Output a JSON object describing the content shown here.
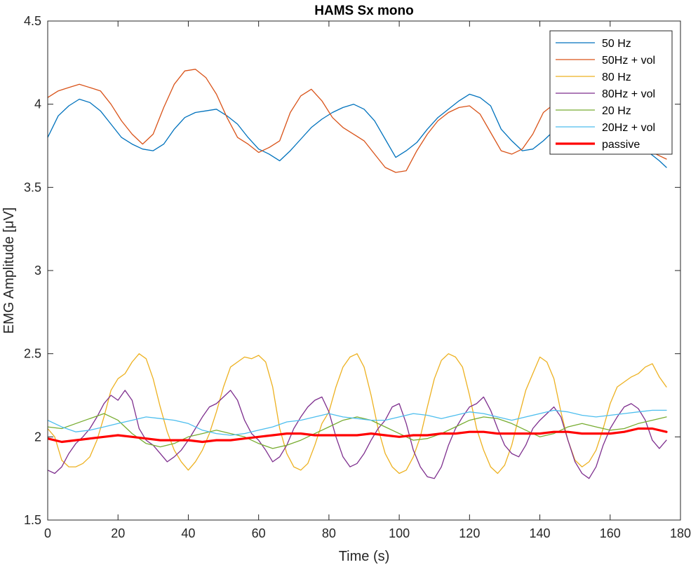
{
  "chart_data": {
    "type": "line",
    "title": "HAMS Sx mono",
    "xlabel": "Time (s)",
    "ylabel": "EMG Amplitude [μV]",
    "xlim": [
      0,
      180
    ],
    "ylim": [
      1.5,
      4.5
    ],
    "xticks": [
      "0",
      "20",
      "40",
      "60",
      "80",
      "100",
      "120",
      "140",
      "160",
      "180"
    ],
    "yticks": [
      "1.5",
      "2",
      "2.5",
      "3",
      "3.5",
      "4",
      "4.5"
    ],
    "grid": false,
    "legend_position": "top-right",
    "series": [
      {
        "name": "50 Hz",
        "color": "#0072BD",
        "width": 1.3,
        "x": [
          0,
          3,
          6,
          9,
          12,
          15,
          18,
          21,
          24,
          27,
          30,
          33,
          36,
          39,
          42,
          45,
          48,
          51,
          54,
          57,
          60,
          63,
          66,
          69,
          72,
          75,
          78,
          81,
          84,
          87,
          90,
          93,
          96,
          99,
          102,
          105,
          108,
          111,
          114,
          117,
          120,
          123,
          126,
          129,
          132,
          135,
          138,
          141,
          144,
          147,
          150,
          153,
          156,
          159,
          162,
          165,
          168,
          171,
          174,
          176
        ],
        "y": [
          3.8,
          3.93,
          3.99,
          4.03,
          4.01,
          3.96,
          3.88,
          3.8,
          3.76,
          3.73,
          3.72,
          3.76,
          3.85,
          3.92,
          3.95,
          3.96,
          3.97,
          3.93,
          3.88,
          3.8,
          3.73,
          3.7,
          3.66,
          3.72,
          3.79,
          3.86,
          3.91,
          3.95,
          3.98,
          4.0,
          3.97,
          3.9,
          3.79,
          3.68,
          3.72,
          3.77,
          3.85,
          3.92,
          3.97,
          4.02,
          4.06,
          4.04,
          3.99,
          3.85,
          3.78,
          3.72,
          3.73,
          3.78,
          3.84,
          3.85,
          3.82,
          3.79,
          3.82,
          3.85,
          3.83,
          3.79,
          3.75,
          3.71,
          3.66,
          3.62
        ]
      },
      {
        "name": "50Hz + vol",
        "color": "#D95319",
        "width": 1.3,
        "x": [
          0,
          3,
          6,
          9,
          12,
          15,
          18,
          21,
          24,
          27,
          30,
          33,
          36,
          39,
          42,
          45,
          48,
          51,
          54,
          57,
          60,
          63,
          66,
          69,
          72,
          75,
          78,
          81,
          84,
          87,
          90,
          93,
          96,
          99,
          102,
          105,
          108,
          111,
          114,
          117,
          120,
          123,
          126,
          129,
          132,
          135,
          138,
          141,
          144,
          147,
          150,
          153,
          156,
          159,
          162,
          165,
          168,
          171,
          174,
          176
        ],
        "y": [
          4.04,
          4.08,
          4.1,
          4.12,
          4.1,
          4.08,
          4.0,
          3.9,
          3.82,
          3.76,
          3.82,
          3.98,
          4.12,
          4.2,
          4.21,
          4.16,
          4.06,
          3.92,
          3.8,
          3.76,
          3.71,
          3.74,
          3.78,
          3.95,
          4.05,
          4.09,
          4.02,
          3.92,
          3.86,
          3.82,
          3.78,
          3.7,
          3.62,
          3.59,
          3.6,
          3.72,
          3.82,
          3.9,
          3.95,
          3.98,
          3.99,
          3.94,
          3.83,
          3.72,
          3.7,
          3.73,
          3.82,
          3.95,
          4.0,
          3.97,
          3.92,
          3.87,
          3.84,
          3.82,
          3.8,
          3.78,
          3.76,
          3.72,
          3.69,
          3.67
        ]
      },
      {
        "name": "80 Hz",
        "color": "#EDB120",
        "width": 1.3,
        "x": [
          0,
          2,
          4,
          6,
          8,
          10,
          12,
          14,
          16,
          18,
          20,
          22,
          24,
          26,
          28,
          30,
          32,
          34,
          36,
          38,
          40,
          42,
          44,
          46,
          48,
          50,
          52,
          54,
          56,
          58,
          60,
          62,
          64,
          66,
          68,
          70,
          72,
          74,
          76,
          78,
          80,
          82,
          84,
          86,
          88,
          90,
          92,
          94,
          96,
          98,
          100,
          102,
          104,
          106,
          108,
          110,
          112,
          114,
          116,
          118,
          120,
          122,
          124,
          126,
          128,
          130,
          132,
          134,
          136,
          138,
          140,
          142,
          144,
          146,
          148,
          150,
          152,
          154,
          156,
          158,
          160,
          162,
          164,
          166,
          168,
          170,
          172,
          174,
          176
        ],
        "y": [
          2.05,
          2.0,
          1.86,
          1.82,
          1.82,
          1.84,
          1.88,
          1.98,
          2.12,
          2.28,
          2.35,
          2.38,
          2.45,
          2.5,
          2.47,
          2.35,
          2.18,
          2.03,
          1.92,
          1.85,
          1.8,
          1.85,
          1.92,
          2.02,
          2.15,
          2.3,
          2.42,
          2.45,
          2.48,
          2.47,
          2.49,
          2.45,
          2.3,
          2.05,
          1.9,
          1.82,
          1.8,
          1.84,
          1.95,
          2.08,
          2.15,
          2.3,
          2.42,
          2.48,
          2.5,
          2.42,
          2.25,
          2.05,
          1.9,
          1.82,
          1.78,
          1.8,
          1.88,
          2.0,
          2.18,
          2.35,
          2.46,
          2.5,
          2.48,
          2.42,
          2.25,
          2.05,
          1.92,
          1.82,
          1.78,
          1.83,
          1.95,
          2.12,
          2.28,
          2.38,
          2.48,
          2.45,
          2.35,
          2.15,
          1.98,
          1.86,
          1.82,
          1.85,
          1.92,
          2.05,
          2.2,
          2.3,
          2.33,
          2.36,
          2.38,
          2.42,
          2.44,
          2.36,
          2.3
        ]
      },
      {
        "name": "80Hz + vol",
        "color": "#7E2F8E",
        "width": 1.3,
        "x": [
          0,
          2,
          4,
          6,
          8,
          10,
          12,
          14,
          16,
          18,
          20,
          22,
          24,
          26,
          28,
          30,
          32,
          34,
          36,
          38,
          40,
          42,
          44,
          46,
          48,
          50,
          52,
          54,
          56,
          58,
          60,
          62,
          64,
          66,
          68,
          70,
          72,
          74,
          76,
          78,
          80,
          82,
          84,
          86,
          88,
          90,
          92,
          94,
          96,
          98,
          100,
          102,
          104,
          106,
          108,
          110,
          112,
          114,
          116,
          118,
          120,
          122,
          124,
          126,
          128,
          130,
          132,
          134,
          136,
          138,
          140,
          142,
          144,
          146,
          148,
          150,
          152,
          154,
          156,
          158,
          160,
          162,
          164,
          166,
          168,
          170,
          172,
          174,
          176
        ],
        "y": [
          1.8,
          1.78,
          1.82,
          1.9,
          1.96,
          2.0,
          2.05,
          2.12,
          2.2,
          2.25,
          2.22,
          2.28,
          2.22,
          2.05,
          1.98,
          1.95,
          1.9,
          1.85,
          1.88,
          1.92,
          1.98,
          2.05,
          2.12,
          2.18,
          2.2,
          2.24,
          2.28,
          2.22,
          2.1,
          2.02,
          1.98,
          1.92,
          1.85,
          1.88,
          1.95,
          2.05,
          2.12,
          2.18,
          2.22,
          2.24,
          2.15,
          2.0,
          1.88,
          1.82,
          1.84,
          1.9,
          1.98,
          2.05,
          2.1,
          2.18,
          2.2,
          2.08,
          1.92,
          1.82,
          1.76,
          1.75,
          1.82,
          1.95,
          2.05,
          2.12,
          2.18,
          2.2,
          2.24,
          2.16,
          2.05,
          1.95,
          1.9,
          1.88,
          1.95,
          2.05,
          2.1,
          2.14,
          2.18,
          2.12,
          1.98,
          1.85,
          1.78,
          1.75,
          1.82,
          1.95,
          2.05,
          2.12,
          2.18,
          2.2,
          2.17,
          2.1,
          1.98,
          1.93,
          1.98
        ]
      },
      {
        "name": "20 Hz",
        "color": "#77AC30",
        "width": 1.3,
        "x": [
          0,
          4,
          8,
          12,
          16,
          20,
          24,
          28,
          32,
          36,
          40,
          44,
          48,
          52,
          56,
          60,
          64,
          68,
          72,
          76,
          80,
          84,
          88,
          92,
          96,
          100,
          104,
          108,
          112,
          116,
          120,
          124,
          128,
          132,
          136,
          140,
          144,
          148,
          152,
          156,
          160,
          164,
          168,
          172,
          176
        ],
        "y": [
          2.06,
          2.05,
          2.08,
          2.11,
          2.14,
          2.1,
          2.02,
          1.96,
          1.94,
          1.96,
          2.0,
          2.02,
          2.04,
          2.02,
          2.0,
          1.96,
          1.93,
          1.95,
          1.98,
          2.02,
          2.06,
          2.1,
          2.12,
          2.1,
          2.06,
          2.02,
          1.98,
          1.99,
          2.02,
          2.06,
          2.1,
          2.12,
          2.11,
          2.08,
          2.04,
          2.0,
          2.02,
          2.06,
          2.08,
          2.06,
          2.04,
          2.05,
          2.08,
          2.1,
          2.12
        ]
      },
      {
        "name": "20Hz + vol",
        "color": "#4DBEEE",
        "width": 1.3,
        "x": [
          0,
          4,
          8,
          12,
          16,
          20,
          24,
          28,
          32,
          36,
          40,
          44,
          48,
          52,
          56,
          60,
          64,
          68,
          72,
          76,
          80,
          84,
          88,
          92,
          96,
          100,
          104,
          108,
          112,
          116,
          120,
          124,
          128,
          132,
          136,
          140,
          144,
          148,
          152,
          156,
          160,
          164,
          168,
          172,
          176
        ],
        "y": [
          2.1,
          2.06,
          2.03,
          2.04,
          2.06,
          2.08,
          2.1,
          2.12,
          2.11,
          2.1,
          2.08,
          2.04,
          2.02,
          2.01,
          2.02,
          2.04,
          2.06,
          2.09,
          2.1,
          2.12,
          2.14,
          2.12,
          2.11,
          2.1,
          2.1,
          2.12,
          2.14,
          2.13,
          2.11,
          2.13,
          2.15,
          2.14,
          2.12,
          2.1,
          2.12,
          2.14,
          2.16,
          2.15,
          2.13,
          2.12,
          2.13,
          2.14,
          2.15,
          2.16,
          2.16
        ]
      },
      {
        "name": "passive",
        "color": "#FF0000",
        "width": 3.2,
        "x": [
          0,
          4,
          8,
          12,
          16,
          20,
          24,
          28,
          32,
          36,
          40,
          44,
          48,
          52,
          56,
          60,
          64,
          68,
          72,
          76,
          80,
          84,
          88,
          92,
          96,
          100,
          104,
          108,
          112,
          116,
          120,
          124,
          128,
          132,
          136,
          140,
          144,
          148,
          152,
          156,
          160,
          164,
          168,
          172,
          176
        ],
        "y": [
          1.99,
          1.97,
          1.98,
          1.99,
          2.0,
          2.01,
          2.0,
          1.99,
          1.98,
          1.98,
          1.98,
          1.97,
          1.98,
          1.98,
          1.99,
          2.0,
          2.01,
          2.02,
          2.02,
          2.01,
          2.01,
          2.01,
          2.01,
          2.02,
          2.01,
          2.0,
          2.01,
          2.01,
          2.02,
          2.02,
          2.03,
          2.03,
          2.02,
          2.02,
          2.02,
          2.02,
          2.03,
          2.03,
          2.02,
          2.02,
          2.02,
          2.03,
          2.05,
          2.05,
          2.03
        ]
      }
    ]
  }
}
